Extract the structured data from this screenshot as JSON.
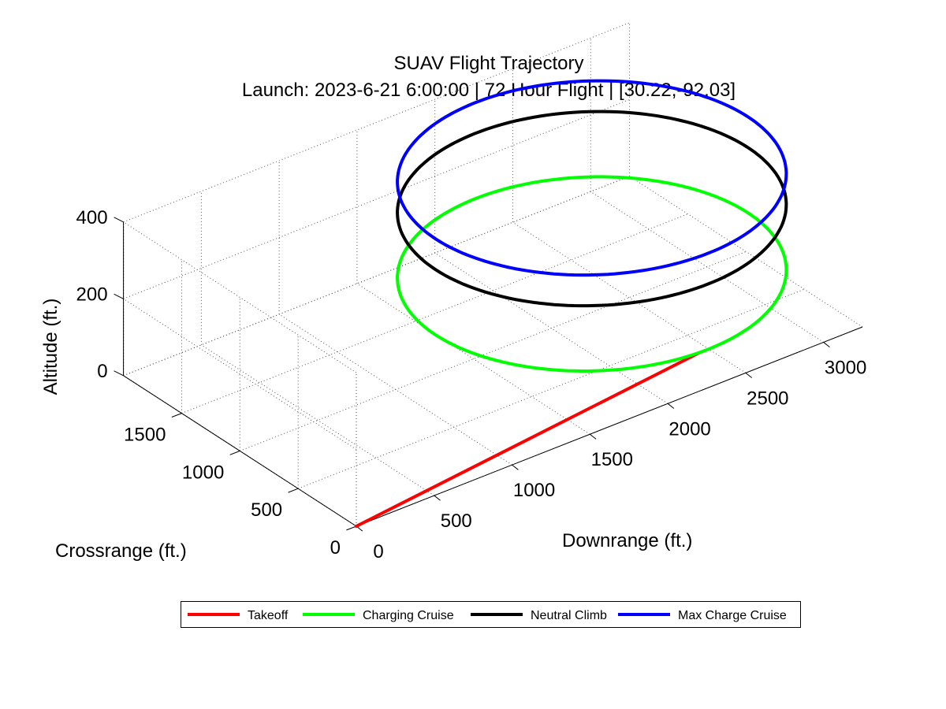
{
  "chart_data": {
    "type": "line",
    "projection": "3d",
    "title": "SUAV Flight Trajectory",
    "subtitle": "Launch: 2023-6-21 6:00:00 | 72 Hour Flight | [30.22,-92.03]",
    "xlabel": "Downrange (ft.)",
    "ylabel": "Crossrange (ft.)",
    "zlabel": "Altitude (ft.)",
    "xlim": [
      0,
      3250
    ],
    "ylim": [
      0,
      2000
    ],
    "zlim": [
      0,
      400
    ],
    "xticks": [
      0,
      500,
      1000,
      1500,
      2000,
      2500,
      3000
    ],
    "yticks": [
      0,
      500,
      1000,
      1500
    ],
    "zticks": [
      0,
      200,
      400
    ],
    "grid": true,
    "legend_position": "bottom-center",
    "legend_orientation": "horizontal",
    "series": [
      {
        "name": "Takeoff",
        "color": "#ff0000",
        "style": "segment",
        "x": [
          0,
          2200
        ],
        "y": [
          0,
          0
        ],
        "z": [
          0,
          100
        ]
      },
      {
        "name": "Charging Cruise",
        "color": "#00ff00",
        "style": "orbit",
        "center_x": 2260,
        "center_y": 1000,
        "radius": 1000,
        "z": 100
      },
      {
        "name": "Neutral Climb",
        "color": "#000000",
        "style": "orbit",
        "center_x": 2260,
        "center_y": 1000,
        "radius": 1000,
        "z": 270
      },
      {
        "name": "Max Charge Cruise",
        "color": "#0000ff",
        "style": "orbit",
        "center_x": 2260,
        "center_y": 1000,
        "radius": 1000,
        "z": 350
      }
    ]
  }
}
